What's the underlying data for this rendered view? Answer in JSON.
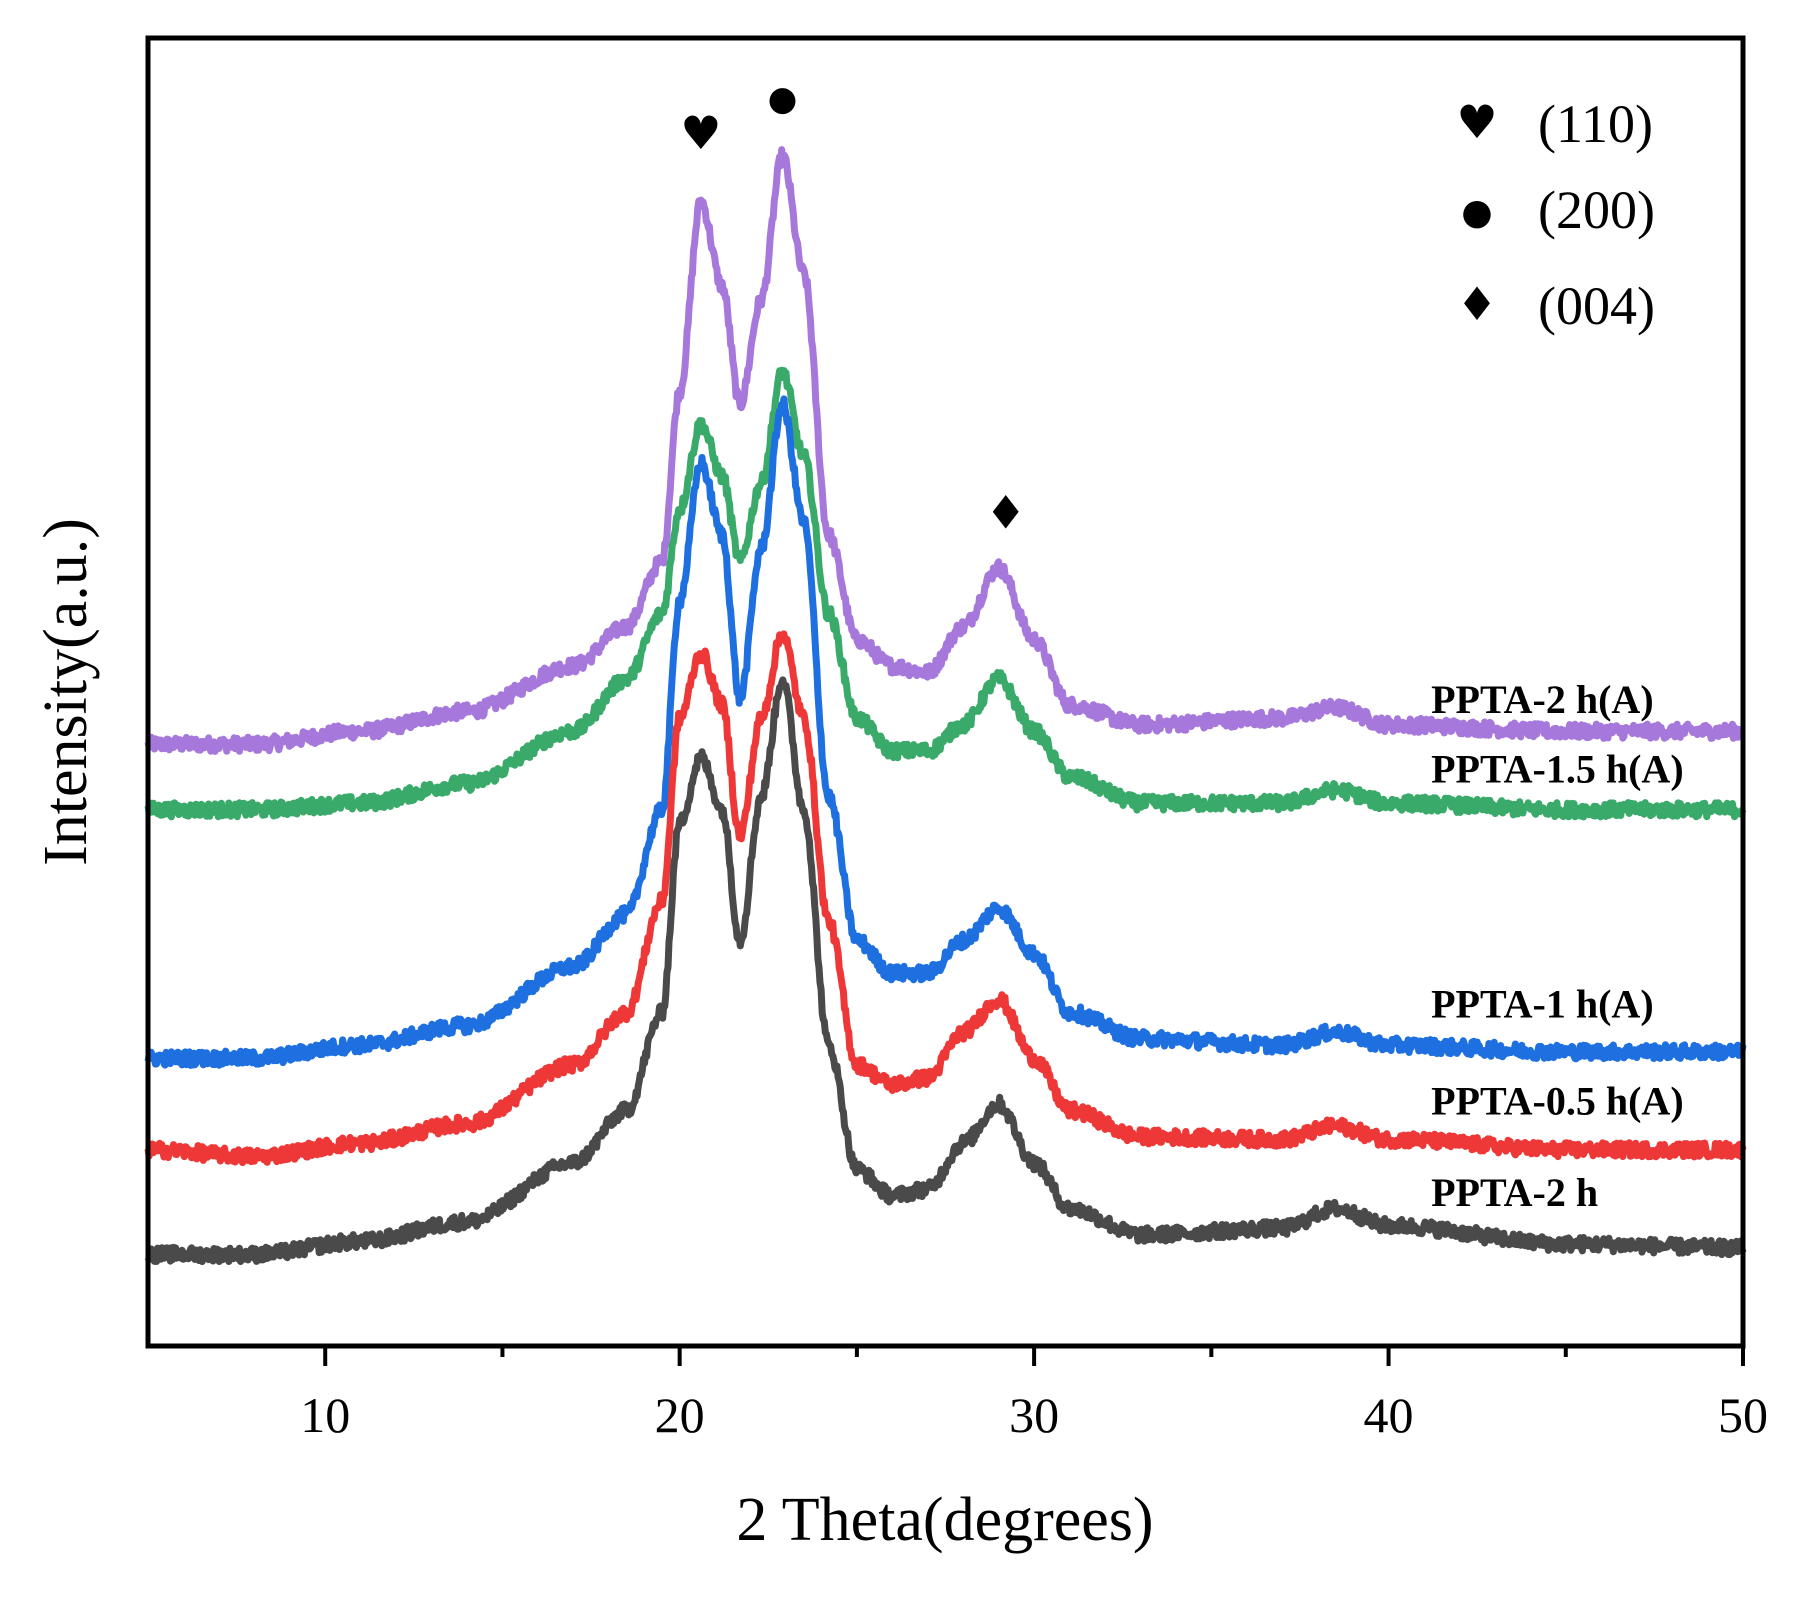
{
  "chart_data": {
    "type": "line",
    "title": "",
    "xlabel": "2 Theta(degrees)",
    "ylabel": "Intensity(a.u.)",
    "xlim": [
      5,
      50
    ],
    "ylim": [
      0,
      100
    ],
    "xticks": [
      10,
      20,
      30,
      40,
      50
    ],
    "xtick_labels": [
      "10",
      "20",
      "30",
      "40",
      "50"
    ],
    "minor_xticks": [
      15,
      25,
      35,
      45
    ],
    "grid": false,
    "legend": {
      "placement": "top-right",
      "entries": [
        {
          "symbol": "heart",
          "glyph": "♥",
          "label": "(110)"
        },
        {
          "symbol": "circle",
          "glyph": "●",
          "label": "(200)"
        },
        {
          "symbol": "diamond",
          "glyph": "♦",
          "label": "(004)"
        }
      ]
    },
    "peak_markers": [
      {
        "symbol": "heart",
        "glyph": "♥",
        "x": 20.6,
        "y": 91.5
      },
      {
        "symbol": "circle",
        "glyph": "●",
        "x": 22.9,
        "y": 94.5
      },
      {
        "symbol": "diamond",
        "glyph": "♦",
        "x": 29.2,
        "y": 62.5
      }
    ],
    "series": [
      {
        "name": "PPTA-2 h(A)",
        "color": "#a678dc",
        "x": [
          5,
          8,
          11,
          14,
          17,
          18.5,
          19.5,
          20.0,
          20.6,
          21.2,
          21.7,
          22.3,
          22.9,
          23.5,
          24.2,
          25.0,
          26.0,
          27.0,
          28.0,
          29.0,
          30.0,
          31.0,
          33.0,
          37.0,
          38.5,
          40.0,
          45.0,
          50.0
        ],
        "values": [
          46.0,
          46.0,
          47.0,
          48.5,
          52.0,
          55.0,
          60.0,
          73.0,
          87.5,
          81.0,
          72.0,
          80.0,
          91.0,
          82.0,
          62.0,
          54.0,
          52.0,
          51.5,
          55.0,
          59.5,
          54.0,
          49.0,
          47.5,
          48.0,
          48.8,
          47.5,
          47.0,
          47.0
        ]
      },
      {
        "name": "PPTA-1.5 h(A)",
        "color": "#3aaa6a",
        "x": [
          5,
          8,
          11,
          14,
          17,
          18.5,
          19.5,
          20.0,
          20.6,
          21.2,
          21.7,
          22.3,
          22.9,
          23.5,
          24.2,
          25.0,
          26.0,
          27.0,
          28.0,
          29.0,
          30.0,
          31.0,
          33.0,
          37.0,
          38.5,
          40.0,
          45.0,
          50.0
        ],
        "values": [
          41.0,
          41.0,
          41.5,
          43.0,
          47.0,
          51.0,
          56.0,
          64.0,
          70.5,
          66.5,
          60.0,
          66.0,
          74.5,
          68.0,
          56.0,
          48.0,
          45.5,
          45.5,
          47.5,
          51.0,
          47.0,
          43.5,
          41.5,
          41.5,
          42.5,
          41.5,
          41.0,
          41.0
        ]
      },
      {
        "name": "PPTA-1 h(A)",
        "color": "#1e6fe0",
        "x": [
          5,
          8,
          11,
          14,
          17,
          18.5,
          19.5,
          20.0,
          20.6,
          21.2,
          21.7,
          22.3,
          22.9,
          23.5,
          24.2,
          25.0,
          26.0,
          27.0,
          28.0,
          29.0,
          30.0,
          31.0,
          33.0,
          37.0,
          38.5,
          40.0,
          45.0,
          50.0
        ],
        "values": [
          22.0,
          22.0,
          23.0,
          24.5,
          29.0,
          33.0,
          41.0,
          57.0,
          67.5,
          62.0,
          49.5,
          61.0,
          72.0,
          63.0,
          42.0,
          31.0,
          28.5,
          28.5,
          31.0,
          33.5,
          30.0,
          25.5,
          23.5,
          23.0,
          24.0,
          23.0,
          22.5,
          22.5
        ]
      },
      {
        "name": "PPTA-0.5 h(A)",
        "color": "#ee3838",
        "x": [
          5,
          8,
          11,
          14,
          17,
          18.5,
          19.5,
          20.0,
          20.6,
          21.2,
          21.7,
          22.3,
          22.9,
          23.5,
          24.2,
          25.0,
          26.0,
          27.0,
          28.0,
          29.0,
          30.0,
          31.0,
          33.0,
          37.0,
          38.5,
          40.0,
          45.0,
          50.0
        ],
        "values": [
          15.0,
          14.5,
          15.5,
          17.0,
          21.5,
          25.5,
          34.0,
          48.0,
          53.0,
          49.0,
          39.0,
          48.0,
          54.5,
          48.0,
          32.5,
          21.5,
          20.0,
          20.5,
          24.0,
          26.5,
          22.0,
          18.0,
          16.0,
          15.8,
          16.8,
          15.8,
          15.0,
          15.0
        ]
      },
      {
        "name": "PPTA-2 h",
        "color": "#4a4a4a",
        "x": [
          5,
          8,
          11,
          14,
          17,
          18.5,
          19.5,
          20.0,
          20.6,
          21.2,
          21.7,
          22.3,
          22.9,
          23.5,
          24.2,
          25.0,
          26.0,
          27.0,
          28.0,
          29.0,
          30.0,
          31.0,
          33.0,
          37.0,
          38.5,
          40.0,
          45.0,
          50.0
        ],
        "values": [
          7.0,
          7.0,
          8.0,
          9.5,
          14.0,
          18.0,
          25.5,
          40.0,
          45.0,
          41.0,
          31.0,
          42.0,
          51.0,
          41.0,
          23.0,
          13.5,
          11.5,
          12.0,
          15.5,
          18.5,
          14.0,
          10.5,
          8.5,
          9.0,
          10.5,
          9.2,
          7.8,
          7.5
        ]
      }
    ],
    "series_labels": [
      {
        "series": "PPTA-2 h(A)",
        "text": "PPTA-2 h(A)",
        "x": 41.2,
        "y": 48.4
      },
      {
        "series": "PPTA-1.5 h(A)",
        "text": "PPTA-1.5 h(A)",
        "x": 41.2,
        "y": 43.1
      },
      {
        "series": "PPTA-1 h(A)",
        "text": "PPTA-1 h(A)",
        "x": 41.2,
        "y": 25.1
      },
      {
        "series": "PPTA-0.5 h(A)",
        "text": "PPTA-0.5 h(A)",
        "x": 41.2,
        "y": 17.7
      },
      {
        "series": "PPTA-2 h",
        "text": "PPTA-2 h",
        "x": 41.2,
        "y": 10.7
      }
    ]
  }
}
